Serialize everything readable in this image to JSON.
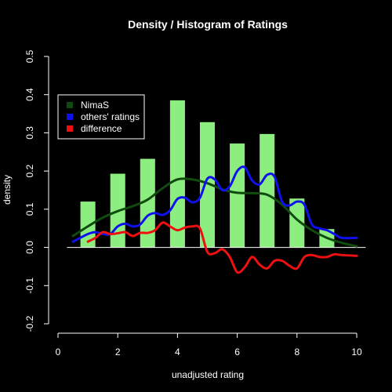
{
  "chart_data": {
    "type": "bar",
    "title": "Density / Histogram of Ratings",
    "xlabel": "unadjusted rating",
    "ylabel": "density",
    "xlim": [
      0,
      10
    ],
    "ylim": [
      -0.2,
      0.5
    ],
    "xticks": [
      "0",
      "2",
      "4",
      "6",
      "8",
      "10"
    ],
    "yticks": [
      "-0.2",
      "-0.1",
      "0.0",
      "0.1",
      "0.2",
      "0.3",
      "0.4",
      "0.5"
    ],
    "legend_position": "top-left",
    "histogram": {
      "color": "#8cee7e",
      "bins": [
        {
          "x": 1,
          "value": 0.12
        },
        {
          "x": 2,
          "value": 0.193
        },
        {
          "x": 3,
          "value": 0.232
        },
        {
          "x": 4,
          "value": 0.385
        },
        {
          "x": 5,
          "value": 0.328
        },
        {
          "x": 6,
          "value": 0.272
        },
        {
          "x": 7,
          "value": 0.297
        },
        {
          "x": 8,
          "value": 0.128
        },
        {
          "x": 9,
          "value": 0.048
        }
      ]
    },
    "series": [
      {
        "name": "NimaS",
        "color": "#0f4a0f",
        "x": [
          0.5,
          1.0,
          1.5,
          2.0,
          2.5,
          3.0,
          3.5,
          4.0,
          4.5,
          5.0,
          5.5,
          6.0,
          6.5,
          7.0,
          7.5,
          8.0,
          8.5,
          9.0,
          9.5,
          10.0
        ],
        "y": [
          0.03,
          0.055,
          0.078,
          0.095,
          0.108,
          0.125,
          0.155,
          0.178,
          0.178,
          0.168,
          0.152,
          0.143,
          0.142,
          0.138,
          0.112,
          0.073,
          0.045,
          0.025,
          0.012,
          0.003
        ]
      },
      {
        "name": "others' ratings",
        "color": "#1010ee",
        "x": [
          0.5,
          1.0,
          1.25,
          1.5,
          1.75,
          2.0,
          2.25,
          2.5,
          2.75,
          3.0,
          3.25,
          3.5,
          3.75,
          4.0,
          4.25,
          4.5,
          4.75,
          5.0,
          5.25,
          5.5,
          5.75,
          6.0,
          6.25,
          6.5,
          6.75,
          7.0,
          7.25,
          7.5,
          7.75,
          8.0,
          8.25,
          8.5,
          8.75,
          9.0,
          9.25,
          9.5,
          10.0
        ],
        "y": [
          0.015,
          0.035,
          0.04,
          0.035,
          0.035,
          0.055,
          0.062,
          0.055,
          0.06,
          0.083,
          0.09,
          0.085,
          0.097,
          0.127,
          0.13,
          0.118,
          0.13,
          0.18,
          0.178,
          0.15,
          0.16,
          0.2,
          0.21,
          0.175,
          0.165,
          0.19,
          0.185,
          0.12,
          0.11,
          0.12,
          0.112,
          0.06,
          0.05,
          0.045,
          0.035,
          0.025,
          0.025
        ]
      },
      {
        "name": "difference",
        "color": "#ee1010",
        "x": [
          1.0,
          1.25,
          1.5,
          1.75,
          2.0,
          2.25,
          2.5,
          2.75,
          3.0,
          3.25,
          3.5,
          3.75,
          4.0,
          4.25,
          4.5,
          4.75,
          5.0,
          5.25,
          5.5,
          5.75,
          6.0,
          6.25,
          6.5,
          6.75,
          7.0,
          7.25,
          7.5,
          7.75,
          8.0,
          8.25,
          8.5,
          8.75,
          9.0,
          9.25,
          9.5,
          10.0
        ],
        "y": [
          0.015,
          0.025,
          0.04,
          0.035,
          0.037,
          0.04,
          0.03,
          0.038,
          0.038,
          0.045,
          0.065,
          0.055,
          0.045,
          0.052,
          0.055,
          0.05,
          -0.012,
          -0.015,
          -0.005,
          -0.025,
          -0.065,
          -0.052,
          -0.025,
          -0.045,
          -0.055,
          -0.035,
          -0.035,
          -0.048,
          -0.055,
          -0.025,
          -0.02,
          -0.025,
          -0.025,
          -0.018,
          -0.02,
          -0.022
        ]
      }
    ]
  }
}
